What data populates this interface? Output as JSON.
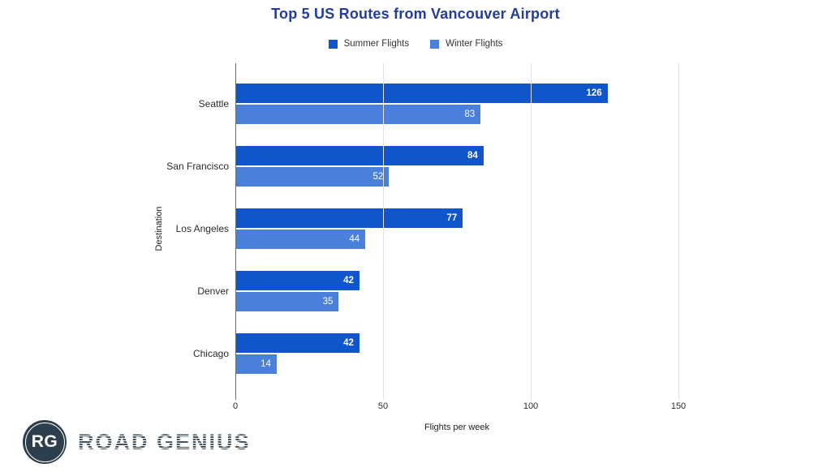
{
  "title": "Top 5 US Routes from Vancouver Airport",
  "chart_data": {
    "type": "bar",
    "orientation": "horizontal",
    "title": "Top 5 US Routes from Vancouver Airport",
    "categories": [
      "Seattle",
      "San Francisco",
      "Los Angeles",
      "Denver",
      "Chicago"
    ],
    "series": [
      {
        "name": "Summer Flights",
        "color": "#1155cc",
        "values": [
          126,
          84,
          77,
          42,
          42
        ]
      },
      {
        "name": "Winter Flights",
        "color": "#4a80db",
        "values": [
          83,
          52,
          44,
          35,
          14
        ]
      }
    ],
    "xlabel": "Flights per week",
    "ylabel": "Destination",
    "xlim": [
      0,
      150
    ],
    "xticks": [
      0,
      50,
      100,
      150
    ],
    "grid": true,
    "legend_position": "top",
    "value_labels": "inside-end"
  },
  "branding": {
    "logo_monogram": "RG",
    "logo_text": "ROAD GENIUS"
  },
  "colors": {
    "title": "#223d9b",
    "summer": "#1155cc",
    "winter": "#4a80db",
    "gridline": "#e2e2e2",
    "axis_line": "#6f6f6f",
    "logo_badge": "#2d3e4c",
    "logo_text": "#43535f",
    "background": "#ffffff"
  }
}
